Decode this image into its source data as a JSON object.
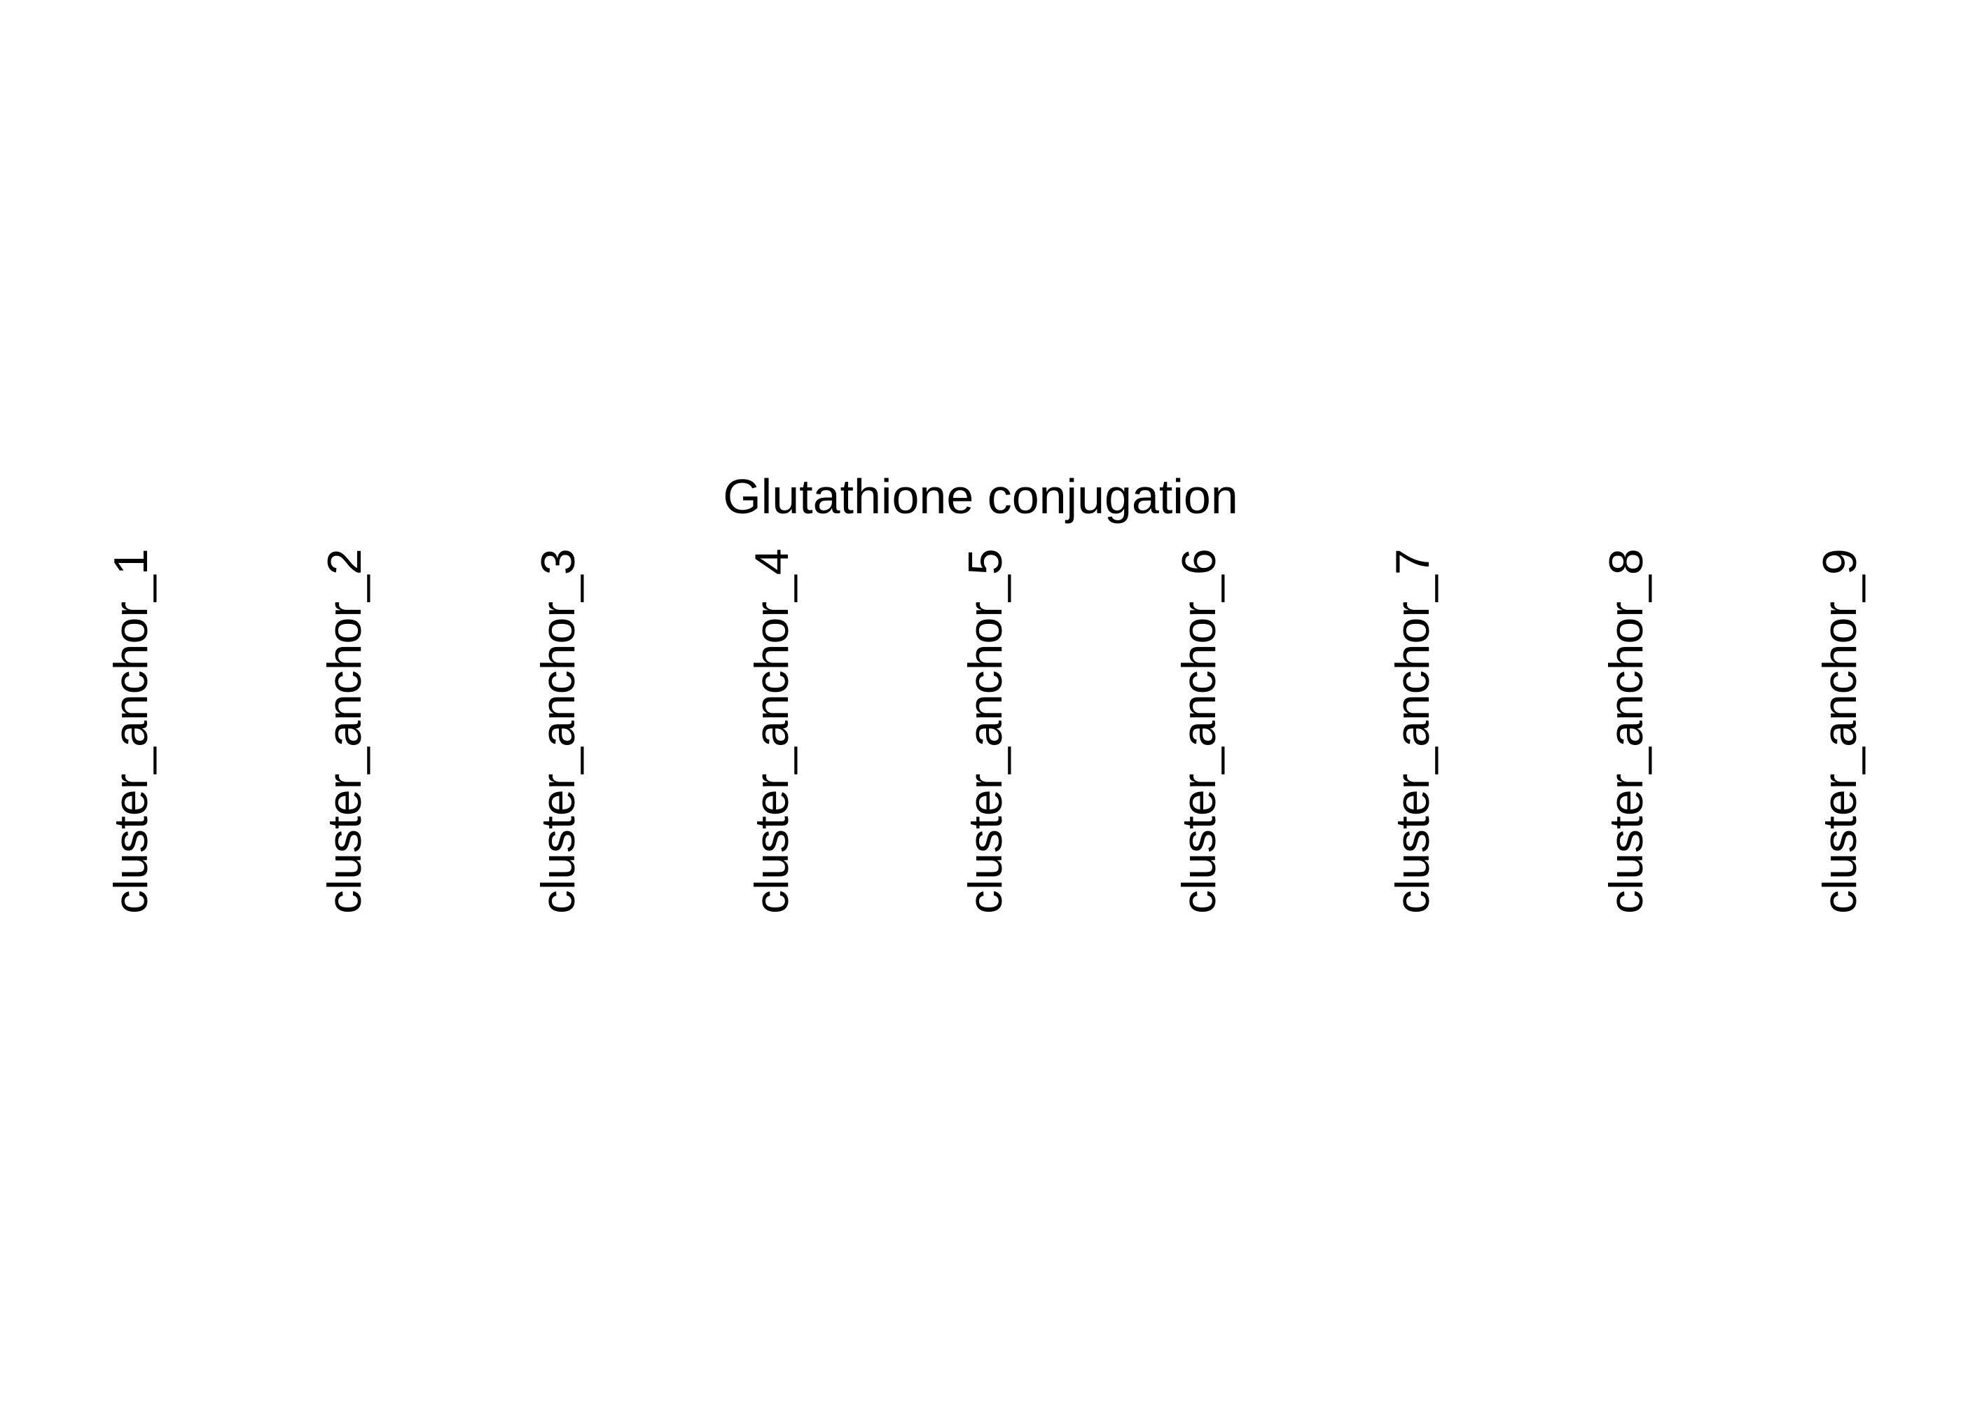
{
  "chart_data": {
    "type": "heatmap",
    "title": "Glutathione conjugation",
    "column_labels": [
      "cluster_anchor_1",
      "cluster_anchor_2",
      "cluster_anchor_3",
      "cluster_anchor_4",
      "cluster_anchor_5",
      "cluster_anchor_6",
      "cluster_anchor_7",
      "cluster_anchor_8",
      "cluster_anchor_9"
    ],
    "rows": [],
    "values": [],
    "text_color": "#000000",
    "background_color": "#ffffff"
  }
}
